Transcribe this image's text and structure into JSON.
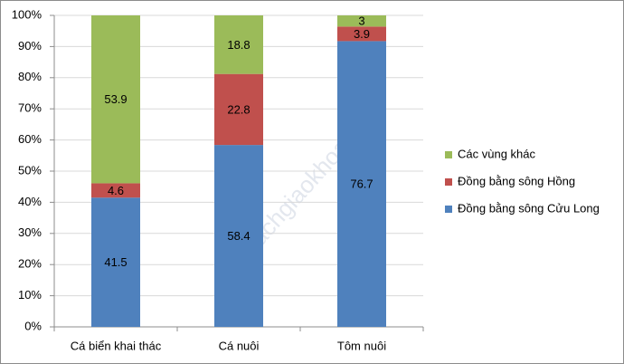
{
  "chart_data": {
    "type": "bar",
    "stacking": "percent",
    "categories": [
      "Cá biển khai thác",
      "Cá nuôi",
      "Tôm nuôi"
    ],
    "series": [
      {
        "name": "Đồng bằng sông Cửu Long",
        "color": "#4f81bd",
        "values": [
          41.5,
          58.4,
          76.7
        ]
      },
      {
        "name": "Đồng bằng sông Hồng",
        "color": "#c0504d",
        "values": [
          4.6,
          22.8,
          3.9
        ]
      },
      {
        "name": "Các vùng khác",
        "color": "#9bbb59",
        "values": [
          53.9,
          18.8,
          3
        ]
      }
    ],
    "ylim": [
      0,
      100
    ],
    "yticks": [
      {
        "value": 0,
        "label": "0%"
      },
      {
        "value": 10,
        "label": "10%"
      },
      {
        "value": 20,
        "label": "20%"
      },
      {
        "value": 30,
        "label": "30%"
      },
      {
        "value": 40,
        "label": "40%"
      },
      {
        "value": 50,
        "label": "50%"
      },
      {
        "value": 60,
        "label": "60%"
      },
      {
        "value": 70,
        "label": "70%"
      },
      {
        "value": 80,
        "label": "80%"
      },
      {
        "value": 90,
        "label": "90%"
      },
      {
        "value": 100,
        "label": "100%"
      }
    ],
    "grid": true,
    "legend": "right",
    "watermark": "sachgiaokhoa.info"
  }
}
